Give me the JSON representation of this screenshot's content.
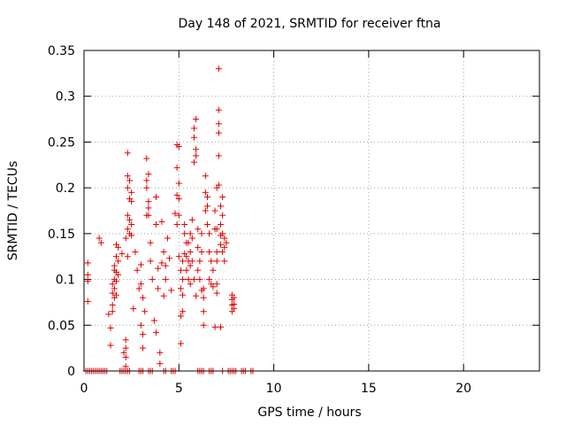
{
  "chart_data": {
    "type": "scatter",
    "title": "Day 148 of 2021, SRMTID for receiver ftna",
    "xlabel": "GPS time / hours",
    "ylabel": "SRMTID / TECUs",
    "xlim": [
      0,
      24
    ],
    "ylim": [
      0,
      0.35
    ],
    "x_ticks": [
      0,
      5,
      10,
      15,
      20
    ],
    "x_tick_labels": [
      "0",
      "5",
      "10",
      "15",
      "20"
    ],
    "y_ticks": [
      0,
      0.05,
      0.1,
      0.15,
      0.2,
      0.25,
      0.3,
      0.35
    ],
    "y_tick_labels": [
      "0",
      "0.05",
      "0.1",
      "0.15",
      "0.2",
      "0.25",
      "0.3",
      "0.35"
    ],
    "grid": true,
    "legend": "none",
    "marker": "plus",
    "marker_color": "#e00000",
    "series": [
      {
        "x": [
          0.2,
          0.2,
          0.2,
          0.2,
          0.8,
          0.9,
          1.3,
          1.4,
          1.4,
          1.5,
          1.5,
          1.5,
          1.5,
          1.6,
          1.6,
          1.6,
          1.6,
          1.6,
          1.7,
          1.7,
          1.7,
          1.7,
          1.7,
          1.8,
          1.8,
          1.8,
          2.0,
          2.1,
          2.2,
          2.2,
          2.2,
          2.2,
          2.2,
          2.3,
          2.3,
          2.3,
          2.3,
          2.3,
          2.3,
          2.4,
          2.4,
          2.4,
          2.4,
          2.5,
          2.5,
          2.5,
          2.5,
          2.6,
          2.7,
          2.8,
          2.9,
          3.0,
          3.0,
          3.0,
          3.1,
          3.1,
          3.1,
          3.2,
          3.3,
          3.3,
          3.3,
          3.3,
          3.4,
          3.4,
          3.4,
          3.4,
          3.5,
          3.5,
          3.6,
          3.7,
          3.8,
          3.8,
          3.8,
          3.9,
          3.9,
          4.0,
          4.0,
          4.1,
          4.1,
          4.2,
          4.2,
          4.3,
          4.3,
          4.4,
          4.5,
          4.6,
          4.8,
          4.9,
          4.9,
          4.9,
          4.9,
          5.0,
          5.0,
          5.0,
          5.0,
          5.0,
          5.1,
          5.1,
          5.1,
          5.1,
          5.2,
          5.2,
          5.2,
          5.2,
          5.3,
          5.3,
          5.3,
          5.4,
          5.4,
          5.4,
          5.5,
          5.5,
          5.5,
          5.6,
          5.6,
          5.6,
          5.6,
          5.7,
          5.7,
          5.7,
          5.8,
          5.8,
          5.8,
          5.8,
          5.9,
          5.9,
          5.9,
          5.9,
          6.0,
          6.0,
          6.0,
          6.1,
          6.1,
          6.2,
          6.2,
          6.2,
          6.3,
          6.3,
          6.3,
          6.3,
          6.4,
          6.4,
          6.4,
          6.5,
          6.5,
          6.5,
          6.6,
          6.6,
          6.6,
          6.7,
          6.7,
          6.8,
          6.8,
          6.9,
          6.9,
          6.9,
          7.0,
          7.0,
          7.0,
          7.0,
          7.0,
          7.0,
          7.1,
          7.1,
          7.1,
          7.1,
          7.1,
          7.1,
          7.2,
          7.2,
          7.2,
          7.2,
          7.2,
          7.3,
          7.3,
          7.3,
          7.3,
          7.4,
          7.4,
          7.4,
          7.5,
          7.8,
          7.8,
          7.8,
          7.8,
          7.9,
          7.9,
          7.9
        ],
        "y": [
          0.118,
          0.105,
          0.098,
          0.076,
          0.145,
          0.14,
          0.062,
          0.047,
          0.028,
          0.095,
          0.085,
          0.072,
          0.065,
          0.115,
          0.11,
          0.1,
          0.09,
          0.08,
          0.138,
          0.125,
          0.108,
          0.098,
          0.083,
          0.135,
          0.12,
          0.105,
          0.128,
          0.02,
          0.034,
          0.025,
          0.015,
          0.005,
          0.145,
          0.238,
          0.213,
          0.2,
          0.17,
          0.155,
          0.125,
          0.208,
          0.188,
          0.165,
          0.15,
          0.195,
          0.185,
          0.16,
          0.148,
          0.068,
          0.13,
          0.11,
          0.09,
          0.116,
          0.095,
          0.05,
          0.08,
          0.04,
          0.025,
          0.065,
          0.232,
          0.208,
          0.2,
          0.17,
          0.215,
          0.185,
          0.178,
          0.17,
          0.14,
          0.12,
          0.1,
          0.055,
          0.19,
          0.16,
          0.042,
          0.112,
          0.09,
          0.02,
          0.008,
          0.163,
          0.118,
          0.13,
          0.082,
          0.115,
          0.1,
          0.145,
          0.123,
          0.088,
          0.172,
          0.247,
          0.222,
          0.192,
          0.16,
          0.245,
          0.205,
          0.188,
          0.17,
          0.125,
          0.11,
          0.09,
          0.06,
          0.03,
          0.12,
          0.1,
          0.083,
          0.065,
          0.16,
          0.15,
          0.128,
          0.14,
          0.125,
          0.11,
          0.14,
          0.12,
          0.1,
          0.15,
          0.13,
          0.115,
          0.095,
          0.165,
          0.145,
          0.12,
          0.265,
          0.255,
          0.228,
          0.1,
          0.275,
          0.242,
          0.235,
          0.082,
          0.155,
          0.135,
          0.11,
          0.12,
          0.1,
          0.15,
          0.13,
          0.088,
          0.09,
          0.08,
          0.065,
          0.05,
          0.213,
          0.195,
          0.175,
          0.19,
          0.18,
          0.16,
          0.15,
          0.13,
          0.1,
          0.12,
          0.095,
          0.11,
          0.092,
          0.175,
          0.155,
          0.048,
          0.2,
          0.155,
          0.13,
          0.12,
          0.095,
          0.085,
          0.33,
          0.285,
          0.27,
          0.26,
          0.235,
          0.203,
          0.18,
          0.16,
          0.148,
          0.138,
          0.048,
          0.19,
          0.17,
          0.15,
          0.13,
          0.145,
          0.135,
          0.12,
          0.14,
          0.083,
          0.078,
          0.072,
          0.065,
          0.08,
          0.073,
          0.068
        ]
      },
      {
        "x": [
          0.1,
          0.2,
          0.3,
          0.4,
          0.5,
          0.6,
          0.7,
          0.8,
          0.9,
          1.0,
          1.1,
          1.2,
          1.9,
          2.0,
          2.1,
          2.2,
          2.3,
          2.4,
          2.9,
          3.0,
          3.1,
          3.4,
          3.5,
          3.6,
          4.2,
          4.3,
          4.6,
          4.7,
          4.8,
          6.0,
          6.1,
          6.2,
          6.3,
          6.6,
          6.7,
          6.8,
          7.3,
          7.6,
          7.7,
          7.8,
          7.9,
          8.0,
          8.3,
          8.4,
          8.5,
          8.8,
          8.9
        ],
        "y": [
          0,
          0,
          0,
          0,
          0,
          0,
          0,
          0,
          0,
          0,
          0,
          0,
          0,
          0,
          0,
          0,
          0,
          0,
          0,
          0,
          0,
          0,
          0,
          0,
          0,
          0,
          0,
          0,
          0,
          0,
          0,
          0,
          0,
          0,
          0,
          0,
          0,
          0,
          0,
          0,
          0,
          0,
          0,
          0,
          0,
          0,
          0
        ]
      }
    ]
  }
}
